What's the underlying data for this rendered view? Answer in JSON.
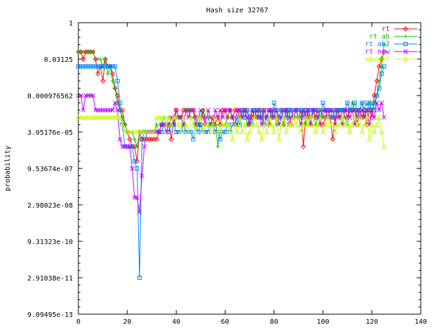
{
  "chart_data": {
    "type": "line",
    "title": "Hash size 32767",
    "xlabel": "",
    "ylabel": "probability",
    "xlim": [
      0,
      140
    ],
    "x_ticks": [
      0,
      20,
      40,
      60,
      80,
      100,
      120,
      140
    ],
    "y_scale": "log2",
    "y_ticks": [
      {
        "value": 1,
        "label": "1"
      },
      {
        "value": 0.03125,
        "label": "0.03125"
      },
      {
        "value": 0.0009765625,
        "label": "0.000976562"
      },
      {
        "value": 3.0517578125e-05,
        "label": "3.05176e-05"
      },
      {
        "value": 9.5367431640625e-07,
        "label": "9.53674e-07"
      },
      {
        "value": 2.98023223876953e-08,
        "label": "2.98023e-08"
      },
      {
        "value": 9.31322574615479e-10,
        "label": "9.31323e-10"
      },
      {
        "value": 2.91038304567337e-11,
        "label": "2.91038e-11"
      },
      {
        "value": 9.09494701772928e-13,
        "label": "9.09495e-13"
      }
    ],
    "ylim_exp2": [
      -40,
      0
    ],
    "grid": false,
    "legend_position": "top-right",
    "series": [
      {
        "name": "rt",
        "color": "#ff0000",
        "marker": "diamond",
        "y_exp2": [
          -4,
          -4,
          -5,
          -4,
          -4,
          -4,
          -4,
          -5,
          -7,
          -6,
          -8,
          -5,
          -6,
          -6,
          -7,
          -9,
          -10,
          -12,
          -12,
          -14,
          -15,
          -16,
          -17,
          -17,
          -19,
          -15,
          -16,
          -16,
          -16,
          -16,
          -16,
          -16,
          -16,
          -15,
          -14,
          -14,
          -14,
          -14,
          -16,
          -13,
          -12,
          -13,
          -13,
          -12,
          -12,
          -12,
          -12,
          -12,
          -13,
          -14,
          -14,
          -12,
          -14,
          -14,
          -14,
          -13,
          -14,
          -13,
          -14,
          -12,
          -12,
          -13,
          -12,
          -13,
          -12,
          -12,
          -13,
          -12,
          -12,
          -12,
          -14,
          -13,
          -12,
          -13,
          -12,
          -13,
          -12,
          -13,
          -14,
          -12,
          -13,
          -13,
          -13,
          -12,
          -14,
          -12,
          -12,
          -14,
          -13,
          -12,
          -13,
          -12,
          -17,
          -12,
          -13,
          -14,
          -12,
          -13,
          -12,
          -14,
          -14,
          -13,
          -12,
          -13,
          -16,
          -13,
          -12,
          -13,
          -12,
          -12,
          -13,
          -12,
          -12,
          -12,
          -14,
          -12,
          -13,
          -12,
          -14,
          -12,
          -13,
          -10,
          -8,
          -6,
          -5,
          -4
        ]
      },
      {
        "name": "rt ab",
        "color": "#00c000",
        "marker": "plus",
        "y_exp2": [
          -4,
          -4,
          -4,
          -4,
          -4,
          -4,
          -4,
          -5,
          -5,
          -5,
          -6,
          -5,
          -7,
          -6,
          -8,
          -9,
          -11,
          -12,
          -13,
          -14,
          -15,
          -15,
          -15,
          -16,
          -17,
          -15,
          -15,
          -15,
          -15,
          -15,
          -15,
          -15,
          -14,
          -15,
          -14,
          -13,
          -14,
          -13,
          -14,
          -14,
          -13,
          -13,
          -13,
          -14,
          -12,
          -12,
          -13,
          -13,
          -13,
          -14,
          -13,
          -12,
          -13,
          -13,
          -14,
          -14,
          -13,
          -17,
          -15,
          -14,
          -14,
          -13,
          -12,
          -13,
          -14,
          -14,
          -12,
          -13,
          -12,
          -14,
          -13,
          -12,
          -13,
          -13,
          -12,
          -13,
          -14,
          -13,
          -12,
          -13,
          -12,
          -14,
          -13,
          -12,
          -14,
          -12,
          -13,
          -12,
          -13,
          -12,
          -13,
          -13,
          -12,
          -14,
          -12,
          -13,
          -12,
          -14,
          -13,
          -12,
          -13,
          -12,
          -13,
          -12,
          -13,
          -12,
          -13,
          -12,
          -12,
          -13,
          -14,
          -12,
          -11,
          -12,
          -13,
          -12,
          -11,
          -13,
          -12,
          -11,
          -12,
          -11,
          -10,
          -8,
          -6,
          -3
        ]
      },
      {
        "name": "rt ab2",
        "color": "#0080ff",
        "marker": "square",
        "y_exp2": [
          -6,
          -6,
          -6,
          -6,
          -6,
          -6,
          -6,
          -6,
          -6,
          -6,
          -6,
          -6,
          -6,
          -6,
          -6,
          -6,
          -8,
          -11,
          -14,
          -17,
          -17,
          -17,
          -17,
          -19,
          -20,
          -35,
          -16,
          -15,
          -15,
          -15,
          -15,
          -15,
          -15,
          -15,
          -15,
          -14,
          -14,
          -15,
          -14,
          -14,
          -15,
          -15,
          -15,
          -14,
          -15,
          -15,
          -15,
          -16,
          -14,
          -15,
          -14,
          -15,
          -15,
          -15,
          -14,
          -14,
          -15,
          -15,
          -16,
          -15,
          -15,
          -14,
          -15,
          -14,
          -14,
          -13,
          -14,
          -12,
          -13,
          -12,
          -13,
          -14,
          -12,
          -12,
          -13,
          -12,
          -14,
          -13,
          -12,
          -13,
          -11,
          -12,
          -13,
          -12,
          -12,
          -13,
          -12,
          -12,
          -13,
          -12,
          -12,
          -12,
          -13,
          -12,
          -12,
          -12,
          -12,
          -12,
          -12,
          -13,
          -11,
          -12,
          -12,
          -12,
          -13,
          -12,
          -12,
          -12,
          -12,
          -12,
          -11,
          -12,
          -12,
          -11,
          -12,
          -12,
          -11,
          -12,
          -11,
          -12,
          -11,
          -12,
          -10,
          -9,
          -7,
          -6
        ]
      },
      {
        "name": "rt new",
        "color": "#c000ff",
        "marker": "x",
        "y_exp2": [
          -10,
          -10,
          -12,
          -10,
          -10,
          -10,
          -10,
          -12,
          -12,
          -12,
          -12,
          -12,
          -12,
          -12,
          -12,
          -11,
          -12,
          -16,
          -17,
          -17,
          -17,
          -17,
          -20,
          -24,
          -24,
          -26,
          -21,
          -17,
          -15,
          -15,
          -15,
          -15,
          -15,
          -15,
          -14,
          -14,
          -15,
          -14,
          -13,
          -14,
          -12,
          -13,
          -13,
          -14,
          -12,
          -13,
          -12,
          -12,
          -14,
          -13,
          -12,
          -13,
          -14,
          -12,
          -13,
          -14,
          -12,
          -13,
          -12,
          -13,
          -12,
          -12,
          -12,
          -13,
          -14,
          -12,
          -12,
          -13,
          -12,
          -13,
          -14,
          -12,
          -13,
          -12,
          -13,
          -14,
          -12,
          -13,
          -12,
          -12,
          -13,
          -12,
          -14,
          -13,
          -12,
          -12,
          -14,
          -13,
          -12,
          -12,
          -13,
          -14,
          -12,
          -13,
          -12,
          -14,
          -12,
          -12,
          -13,
          -14,
          -12,
          -12,
          -13,
          -12,
          -12,
          -14,
          -12,
          -13,
          -14,
          -12,
          -12,
          -13,
          -12,
          -14,
          -12,
          -13,
          -12,
          -13,
          -12,
          -14,
          -12,
          -13,
          -11,
          -12,
          -11,
          -13
        ]
      },
      {
        "name": "abcdef",
        "color": "#c0ff00",
        "marker": "triangle",
        "y_exp2": [
          -13,
          -13,
          -13,
          -13,
          -13,
          -13,
          -13,
          -13,
          -13,
          -13,
          -13,
          -13,
          -13,
          -13,
          -13,
          -13,
          -13,
          -13,
          -14,
          -15,
          -15,
          -15,
          -15,
          -15,
          -15,
          -15,
          -15,
          -15,
          -15,
          -15,
          -15,
          -15,
          -13,
          -13,
          -13,
          -13,
          -14,
          -13,
          -14,
          -13,
          -13,
          -14,
          -15,
          -13,
          -14,
          -15,
          -13,
          -14,
          -15,
          -13,
          -13,
          -15,
          -14,
          -14,
          -15,
          -14,
          -13,
          -15,
          -15,
          -14,
          -14,
          -14,
          -15,
          -16,
          -14,
          -15,
          -13,
          -15,
          -14,
          -16,
          -15,
          -14,
          -13,
          -14,
          -15,
          -16,
          -14,
          -15,
          -13,
          -14,
          -15,
          -13,
          -16,
          -14,
          -13,
          -15,
          -14,
          -14,
          -13,
          -14,
          -13,
          -15,
          -14,
          -13,
          -14,
          -13,
          -14,
          -15,
          -14,
          -13,
          -15,
          -14,
          -13,
          -14,
          -14,
          -15,
          -14,
          -14,
          -13,
          -14,
          -14,
          -15,
          -14,
          -13,
          -14,
          -13,
          -15,
          -14,
          -13,
          -16,
          -14,
          -15,
          -14,
          -13,
          -15,
          -17
        ]
      }
    ]
  }
}
